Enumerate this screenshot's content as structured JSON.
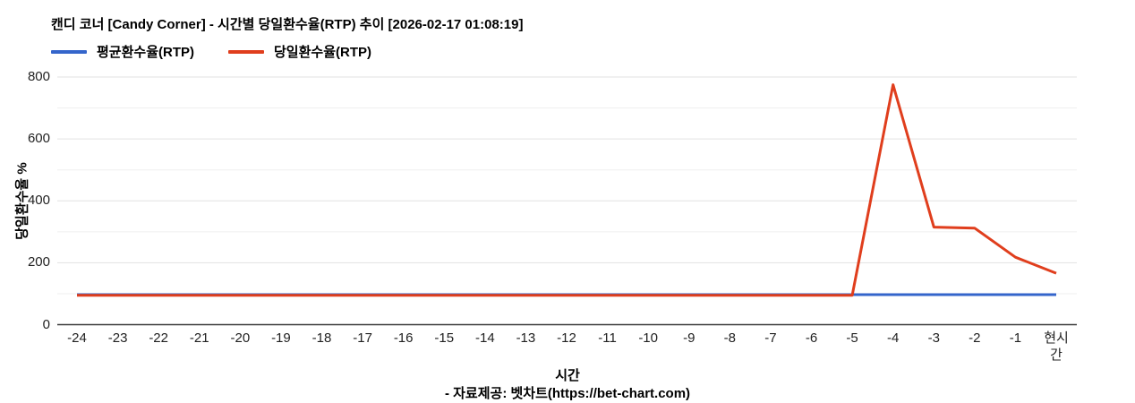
{
  "chart": {
    "title": "캔디 코너 [Candy Corner] - 시간별 당일환수율(RTP) 추이 [2026-02-17 01:08:19]",
    "y_axis_title": "당일환수율 %",
    "x_axis_title": "시간",
    "footer": "- 자료제공: 벳차트(https://bet-chart.com)"
  },
  "chart_data": {
    "type": "line",
    "title": "캔디 코너 [Candy Corner] - 시간별 당일환수율(RTP) 추이 [2026-02-17 01:08:19]",
    "xlabel": "시간",
    "ylabel": "당일환수율 %",
    "categories": [
      "-24",
      "-23",
      "-22",
      "-21",
      "-20",
      "-19",
      "-18",
      "-17",
      "-16",
      "-15",
      "-14",
      "-13",
      "-12",
      "-11",
      "-10",
      "-9",
      "-8",
      "-7",
      "-6",
      "-5",
      "-4",
      "-3",
      "-2",
      "-1",
      "현시간"
    ],
    "series": [
      {
        "name": "평균환수율(RTP)",
        "color": "#3465cb",
        "values": [
          97,
          97,
          97,
          97,
          97,
          97,
          97,
          97,
          97,
          97,
          97,
          97,
          97,
          97,
          97,
          97,
          97,
          97,
          97,
          97,
          97,
          97,
          97,
          97,
          97
        ]
      },
      {
        "name": "당일환수율(RTP)",
        "color": "#e03e1d",
        "values": [
          95,
          95,
          95,
          95,
          95,
          95,
          95,
          95,
          95,
          95,
          95,
          95,
          95,
          95,
          95,
          95,
          95,
          95,
          95,
          95,
          775,
          315,
          312,
          218,
          166
        ]
      }
    ],
    "ylim": [
      0,
      800
    ],
    "yticks": [
      0,
      200,
      400,
      600,
      800
    ],
    "minor_yticks": [
      100,
      300,
      500,
      700
    ],
    "grid": true,
    "legend_position": "top-left"
  }
}
